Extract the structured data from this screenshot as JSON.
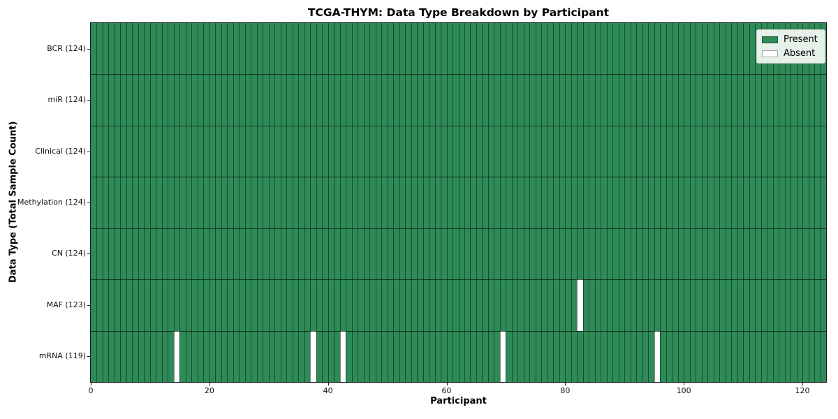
{
  "chart_data": {
    "type": "heatmap",
    "title": "TCGA-THYM: Data Type Breakdown by Participant",
    "xlabel": "Participant",
    "ylabel": "Data Type (Total Sample Count)",
    "n_participants": 124,
    "xlim": [
      0,
      124
    ],
    "x_ticks": [
      0,
      20,
      40,
      60,
      80,
      100,
      120
    ],
    "rows": [
      {
        "label": "BCR (124)",
        "data_type": "BCR",
        "present_count": 124,
        "absent_participants": []
      },
      {
        "label": "miR (124)",
        "data_type": "miR",
        "present_count": 124,
        "absent_participants": []
      },
      {
        "label": "Clinical (124)",
        "data_type": "Clinical",
        "present_count": 124,
        "absent_participants": []
      },
      {
        "label": "Methylation (124)",
        "data_type": "Methylation",
        "present_count": 124,
        "absent_participants": []
      },
      {
        "label": "CN (124)",
        "data_type": "CN",
        "present_count": 124,
        "absent_participants": []
      },
      {
        "label": "MAF (123)",
        "data_type": "MAF",
        "present_count": 123,
        "absent_participants": [
          82
        ]
      },
      {
        "label": "mRNA (119)",
        "data_type": "mRNA",
        "present_count": 119,
        "absent_participants": [
          14,
          37,
          42,
          69,
          95
        ]
      }
    ],
    "legend": [
      {
        "label": "Present",
        "color": "#2e8b57"
      },
      {
        "label": "Absent",
        "color": "#ffffff"
      }
    ],
    "legend_position": "upper right",
    "colors": {
      "present": "#2e8b57",
      "absent": "#ffffff",
      "cell_edge_vertical": "rgba(0,0,0,0.45)",
      "cell_edge_horizontal": "rgba(0,0,0,0.6)",
      "spine": "#1a1a1a"
    },
    "grid": "cell-edges"
  }
}
